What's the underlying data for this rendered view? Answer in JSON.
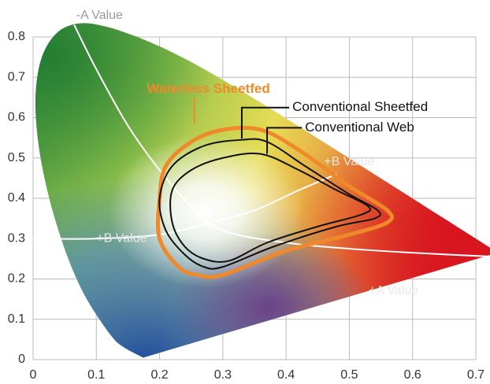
{
  "chart_data": {
    "type": "line",
    "xlim": [
      0,
      0.7
    ],
    "ylim": [
      0,
      0.8
    ],
    "xticks": [
      0,
      0.1,
      0.2,
      0.3,
      0.4,
      0.5,
      0.6,
      0.7
    ],
    "yticks": [
      0,
      0.1,
      0.2,
      0.3,
      0.4,
      0.5,
      0.6,
      0.7,
      0.8
    ],
    "grid": true,
    "region": {
      "x": [
        0.1741,
        0.144,
        0.124,
        0.0913,
        0.0687,
        0.0454,
        0.0235,
        0.0082,
        0.0039,
        0.0139,
        0.0389,
        0.0743,
        0.1142,
        0.1547,
        0.1929,
        0.2296,
        0.2658,
        0.3016,
        0.3373,
        0.3731,
        0.4087,
        0.4441,
        0.4788,
        0.5125,
        0.5448,
        0.5752,
        0.6029,
        0.627,
        0.6482,
        0.6658,
        0.6801,
        0.6915,
        0.7006,
        0.7347
      ],
      "values": [
        0.005,
        0.03,
        0.058,
        0.133,
        0.2007,
        0.295,
        0.4127,
        0.5384,
        0.6548,
        0.7502,
        0.812,
        0.8338,
        0.8262,
        0.8059,
        0.7816,
        0.7543,
        0.7243,
        0.6923,
        0.6589,
        0.6245,
        0.5896,
        0.5547,
        0.5202,
        0.4866,
        0.4544,
        0.4242,
        0.3965,
        0.3725,
        0.3514,
        0.334,
        0.3197,
        0.3083,
        0.2993,
        0.2653
      ]
    },
    "lines": [
      {
        "color": "#ffffff",
        "x": [
          0.065,
          0.1,
          0.15,
          0.2,
          0.25,
          0.3,
          0.4,
          0.5,
          0.6,
          0.73
        ],
        "values": [
          0.83,
          0.72,
          0.58,
          0.47,
          0.38,
          0.32,
          0.29,
          0.275,
          0.265,
          0.255
        ]
      },
      {
        "color": "#ffffff",
        "x": [
          0,
          0.1,
          0.2,
          0.28,
          0.35,
          0.42,
          0.48
        ],
        "values": [
          0.3,
          0.3,
          0.31,
          0.34,
          0.37,
          0.42,
          0.46
        ]
      }
    ],
    "series": [
      {
        "name": "Waterless Sheetfed",
        "color": "#f0892a",
        "x": [
          0.2,
          0.21,
          0.25,
          0.3,
          0.36,
          0.42,
          0.5,
          0.56,
          0.56,
          0.5,
          0.4,
          0.3,
          0.26,
          0.23,
          0.2
        ],
        "values": [
          0.4,
          0.48,
          0.54,
          0.57,
          0.57,
          0.52,
          0.43,
          0.37,
          0.34,
          0.31,
          0.27,
          0.21,
          0.21,
          0.23,
          0.3
        ]
      },
      {
        "name": "Conventional Sheetfed",
        "color": "#111111",
        "x": [
          0.2,
          0.22,
          0.27,
          0.33,
          0.37,
          0.43,
          0.5,
          0.545,
          0.54,
          0.48,
          0.38,
          0.3,
          0.27,
          0.24,
          0.21
        ],
        "values": [
          0.4,
          0.48,
          0.53,
          0.545,
          0.54,
          0.48,
          0.41,
          0.37,
          0.35,
          0.33,
          0.28,
          0.23,
          0.23,
          0.26,
          0.32
        ]
      },
      {
        "name": "Conventional Web",
        "color": "#111111",
        "x": [
          0.22,
          0.25,
          0.3,
          0.36,
          0.42,
          0.48,
          0.53,
          0.52,
          0.45,
          0.37,
          0.31,
          0.27,
          0.24,
          0.22
        ],
        "values": [
          0.42,
          0.47,
          0.5,
          0.51,
          0.47,
          0.42,
          0.38,
          0.36,
          0.33,
          0.29,
          0.245,
          0.25,
          0.28,
          0.34
        ]
      }
    ],
    "annotations": [
      "-A Value",
      "+B Value",
      "+B Value",
      "+A Value"
    ]
  }
}
